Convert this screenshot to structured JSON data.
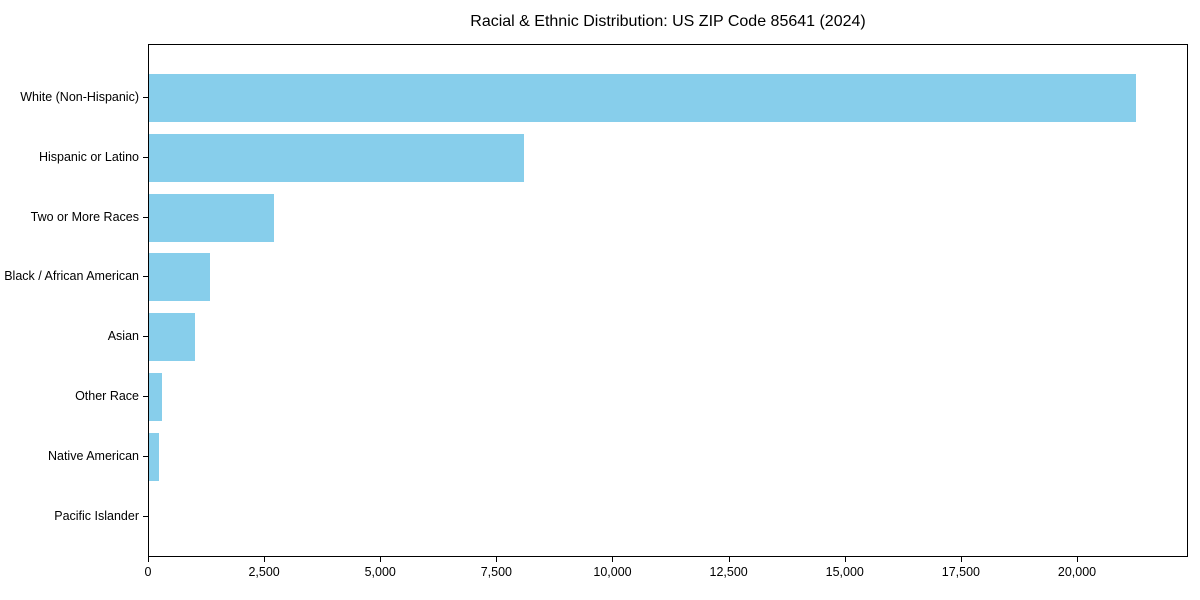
{
  "chart_data": {
    "type": "bar",
    "orientation": "horizontal",
    "title": "Racial & Ethnic Distribution: US ZIP Code 85641 (2024)",
    "xlabel": "",
    "ylabel": "",
    "categories": [
      "White (Non-Hispanic)",
      "Hispanic or Latino",
      "Two or More Races",
      "Black / African American",
      "Asian",
      "Other Race",
      "Native American",
      "Pacific Islander"
    ],
    "values": [
      21250,
      8070,
      2690,
      1310,
      990,
      270,
      210,
      0
    ],
    "xlim": [
      0,
      22390
    ],
    "xticks": [
      0,
      2500,
      5000,
      7500,
      10000,
      12500,
      15000,
      17500,
      20000
    ],
    "xtick_labels": [
      "0",
      "2,500",
      "5,000",
      "7,500",
      "10,000",
      "12,500",
      "15,000",
      "17,500",
      "20,000"
    ],
    "bar_color": "#87CEEB",
    "axis_color": "#000000",
    "text_color": "#000000",
    "grid": false,
    "legend": null
  }
}
